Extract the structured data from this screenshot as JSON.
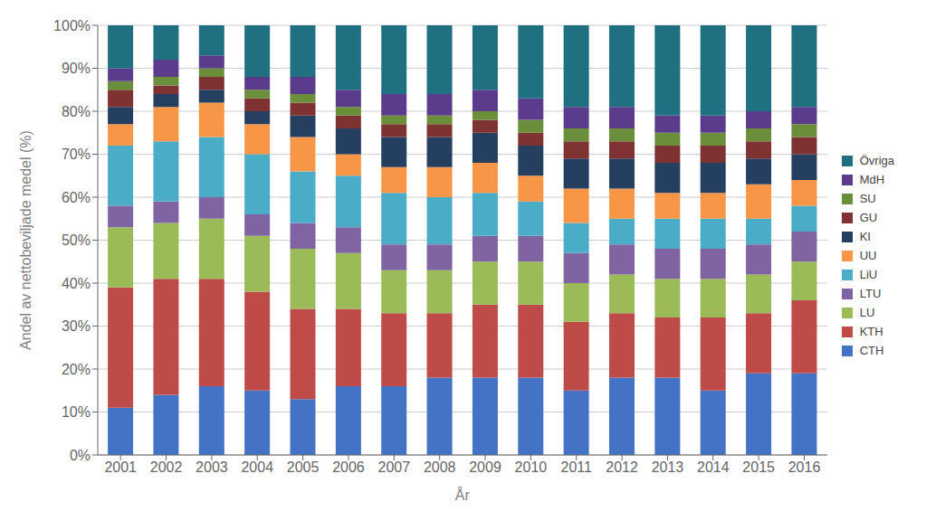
{
  "chart_data": {
    "type": "bar",
    "stacked": true,
    "xlabel": "År",
    "ylabel": "Andel av  nettobeviljade medel (%)",
    "categories": [
      "2001",
      "2002",
      "2003",
      "2004",
      "2005",
      "2006",
      "2007",
      "2008",
      "2009",
      "2010",
      "2011",
      "2012",
      "2013",
      "2014",
      "2015",
      "2016"
    ],
    "series": [
      {
        "name": "CTH",
        "color": "#4472C4",
        "values": [
          11,
          14,
          16,
          15,
          13,
          16,
          16,
          18,
          18,
          18,
          15,
          18,
          18,
          15,
          19,
          19
        ]
      },
      {
        "name": "KTH",
        "color": "#BE4B48",
        "values": [
          28,
          27,
          25,
          23,
          21,
          18,
          17,
          15,
          17,
          17,
          16,
          15,
          14,
          17,
          14,
          17
        ]
      },
      {
        "name": "LU",
        "color": "#9BBB59",
        "values": [
          14,
          13,
          14,
          13,
          14,
          13,
          10,
          10,
          10,
          10,
          9,
          9,
          9,
          9,
          9,
          9
        ]
      },
      {
        "name": "LTU",
        "color": "#8064A2",
        "values": [
          5,
          5,
          5,
          5,
          6,
          6,
          6,
          6,
          6,
          6,
          7,
          7,
          7,
          7,
          7,
          7
        ]
      },
      {
        "name": "LiU",
        "color": "#4AACC6",
        "values": [
          14,
          14,
          14,
          14,
          12,
          12,
          12,
          11,
          10,
          8,
          7,
          6,
          7,
          7,
          6,
          6
        ]
      },
      {
        "name": "UU",
        "color": "#F79646",
        "values": [
          5,
          8,
          8,
          7,
          8,
          5,
          6,
          7,
          7,
          6,
          8,
          7,
          6,
          6,
          8,
          6
        ]
      },
      {
        "name": "KI",
        "color": "#243F60",
        "values": [
          4,
          3,
          3,
          3,
          5,
          6,
          7,
          7,
          7,
          7,
          7,
          7,
          7,
          7,
          6,
          6
        ]
      },
      {
        "name": "GU",
        "color": "#7F3232",
        "values": [
          4,
          2,
          3,
          3,
          3,
          3,
          3,
          3,
          3,
          3,
          4,
          4,
          4,
          4,
          4,
          4
        ]
      },
      {
        "name": "SU",
        "color": "#6B8E3A",
        "values": [
          2,
          2,
          2,
          2,
          2,
          2,
          2,
          2,
          2,
          3,
          3,
          3,
          3,
          3,
          3,
          3
        ]
      },
      {
        "name": "MdH",
        "color": "#5B3C8C",
        "values": [
          3,
          4,
          3,
          3,
          4,
          4,
          5,
          5,
          5,
          5,
          5,
          5,
          4,
          4,
          4,
          4
        ]
      },
      {
        "name": "Övriga",
        "color": "#1F7080",
        "values": [
          10,
          8,
          7,
          12,
          12,
          15,
          16,
          16,
          15,
          17,
          19,
          19,
          21,
          21,
          20,
          19
        ]
      }
    ],
    "ylim": [
      0,
      100
    ],
    "yticks": [
      {
        "value": 0,
        "label": "0%"
      },
      {
        "value": 10,
        "label": "10%"
      },
      {
        "value": 20,
        "label": "20%"
      },
      {
        "value": 30,
        "label": "30%"
      },
      {
        "value": 40,
        "label": "40%"
      },
      {
        "value": 50,
        "label": "50%"
      },
      {
        "value": 60,
        "label": "60%"
      },
      {
        "value": 70,
        "label": "70%"
      },
      {
        "value": 80,
        "label": "80%"
      },
      {
        "value": 90,
        "label": "90%"
      },
      {
        "value": 100,
        "label": "100%"
      }
    ],
    "grid": true,
    "legend": "right"
  }
}
